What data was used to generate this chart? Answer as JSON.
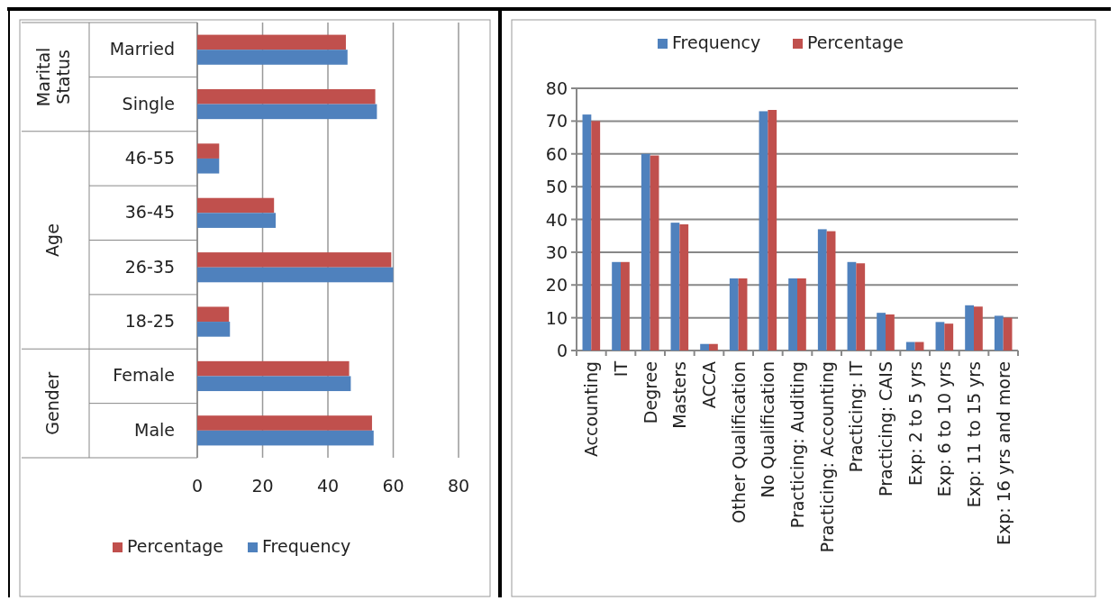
{
  "chart_data": [
    {
      "type": "bar",
      "orientation": "horizontal",
      "categories": [
        "Married",
        "Single",
        "46-55",
        "36-45",
        "26-35",
        "18-25",
        "Female",
        "Male"
      ],
      "series": [
        {
          "name": "Percentage",
          "color": "#c0504d",
          "values": [
            45.5,
            54.5,
            6.7,
            23.5,
            59.4,
            9.7,
            46.5,
            53.5
          ]
        },
        {
          "name": "Frequency",
          "color": "#4f81bd",
          "values": [
            46,
            55,
            6.7,
            24,
            60,
            10,
            47,
            54
          ]
        }
      ],
      "xlim": [
        0,
        80
      ],
      "xticks": [
        0,
        20,
        40,
        60,
        80
      ],
      "grid": "x",
      "legend": "bottom",
      "annotations": [
        "Marital Status",
        "Age",
        "Gender"
      ]
    },
    {
      "type": "bar",
      "categories": [
        "Accounting",
        "IT",
        "Degree",
        "Masters",
        "ACCA",
        "Other Qualification",
        "No Qualification",
        "Practicing: Auditing",
        "Practicing: Accounting",
        "Practicing: IT",
        "Practicing: CAIS",
        "Exp: 2 to 5 yrs",
        "Exp: 6 to 10 yrs",
        "Exp: 11 to 15 yrs",
        "Exp: 16 yrs and more"
      ],
      "series": [
        {
          "name": "Frequency",
          "color": "#4f81bd",
          "values": [
            72,
            27,
            60,
            39,
            2,
            22,
            73,
            22,
            37,
            27,
            11.5,
            2.6,
            8.7,
            13.8,
            10.6
          ]
        },
        {
          "name": "Percentage",
          "color": "#c0504d",
          "values": [
            70,
            27,
            59.5,
            38.5,
            2,
            22,
            73.4,
            22,
            36.4,
            26.6,
            11,
            2.6,
            8.2,
            13.4,
            10
          ]
        }
      ],
      "ylim": [
        0,
        80
      ],
      "yticks": [
        0,
        10,
        20,
        30,
        40,
        50,
        60,
        70,
        80
      ],
      "grid": "y",
      "legend": "top"
    }
  ]
}
